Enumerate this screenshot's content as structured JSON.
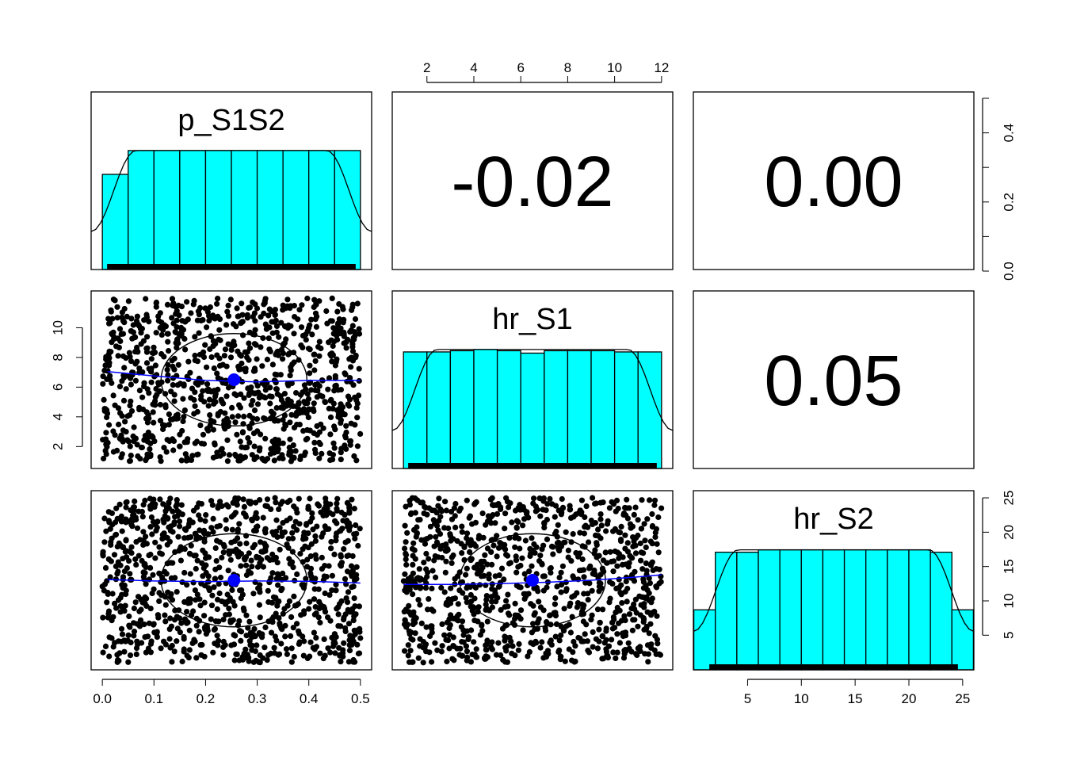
{
  "chart_data": {
    "type": "scatter",
    "description_kind": "pairs-panels",
    "variables": [
      {
        "name": "p_S1S2",
        "range": [
          0,
          0.5
        ],
        "ticks": [
          0.0,
          0.1,
          0.2,
          0.3,
          0.4,
          0.5
        ],
        "tick_labels": [
          "0.0",
          "0.1",
          "0.2",
          "0.3",
          "0.4",
          "0.5"
        ],
        "mean": 0.255
      },
      {
        "name": "hr_S1",
        "range": [
          1,
          12
        ],
        "ticks": [
          2,
          4,
          6,
          8,
          10,
          12
        ],
        "tick_labels": [
          "2",
          "4",
          "6",
          "8",
          "10",
          "12"
        ],
        "mean": 6.5
      },
      {
        "name": "hr_S2",
        "range": [
          1,
          25
        ],
        "ticks": [
          5,
          10,
          15,
          20,
          25
        ],
        "tick_labels": [
          "5",
          "10",
          "15",
          "20",
          "25"
        ],
        "mean": 13
      }
    ],
    "correlations": [
      {
        "row": 0,
        "col": 1,
        "value": "-0.02"
      },
      {
        "row": 0,
        "col": 2,
        "value": "0.00"
      },
      {
        "row": 1,
        "col": 2,
        "value": "0.05"
      }
    ],
    "histograms": [
      {
        "variable": "p_S1S2",
        "bin_edges": [
          0,
          0.05,
          0.1,
          0.15,
          0.2,
          0.25,
          0.3,
          0.35,
          0.4,
          0.45,
          0.5
        ],
        "counts": [
          0.8,
          1,
          1,
          1,
          1,
          1,
          1,
          1,
          1,
          1
        ]
      },
      {
        "variable": "hr_S1",
        "bin_edges": [
          1,
          2,
          3,
          4,
          5,
          6,
          7,
          8,
          9,
          10,
          11,
          12
        ],
        "counts": [
          0.97,
          0.97,
          0.98,
          0.99,
          0.98,
          0.96,
          0.98,
          0.98,
          0.98,
          0.97,
          0.97
        ]
      },
      {
        "variable": "hr_S2",
        "bin_edges": [
          0,
          2,
          4,
          6,
          8,
          10,
          12,
          14,
          16,
          18,
          20,
          22,
          24,
          26
        ],
        "counts": [
          0.5,
          0.98,
          0.98,
          1,
          1,
          1,
          1,
          1,
          1,
          1,
          1,
          0.98,
          0.5
        ]
      }
    ],
    "hist_ylim": [
      0,
      0.5
    ],
    "hist_yticks": [
      0.0,
      0.2,
      0.4
    ],
    "hist_ytick_labels": [
      "0.0",
      "0.2",
      "0.4"
    ],
    "scatter_points_per_panel": 1000,
    "smooth": {
      "p_S1S2_vs_hr_S1": {
        "x": [
          0.01,
          0.1,
          0.2,
          0.3,
          0.4,
          0.5
        ],
        "y": [
          7.05,
          6.75,
          6.45,
          6.35,
          6.45,
          6.45
        ]
      },
      "p_S1S2_vs_hr_S2": {
        "x": [
          0.01,
          0.1,
          0.2,
          0.3,
          0.4,
          0.5
        ],
        "y": [
          13.1,
          12.9,
          12.8,
          12.9,
          12.85,
          12.6
        ]
      },
      "hr_S1_vs_hr_S2": {
        "x": [
          1,
          3,
          5,
          7,
          9,
          11,
          12
        ],
        "y": [
          12.4,
          12.4,
          12.5,
          12.7,
          13.0,
          13.5,
          13.8
        ]
      }
    },
    "colors": {
      "bar_fill": "#00ffff",
      "smooth": "#0000ff",
      "mean_point": "#0000ff",
      "points": "#000000",
      "frame": "#000000"
    }
  }
}
